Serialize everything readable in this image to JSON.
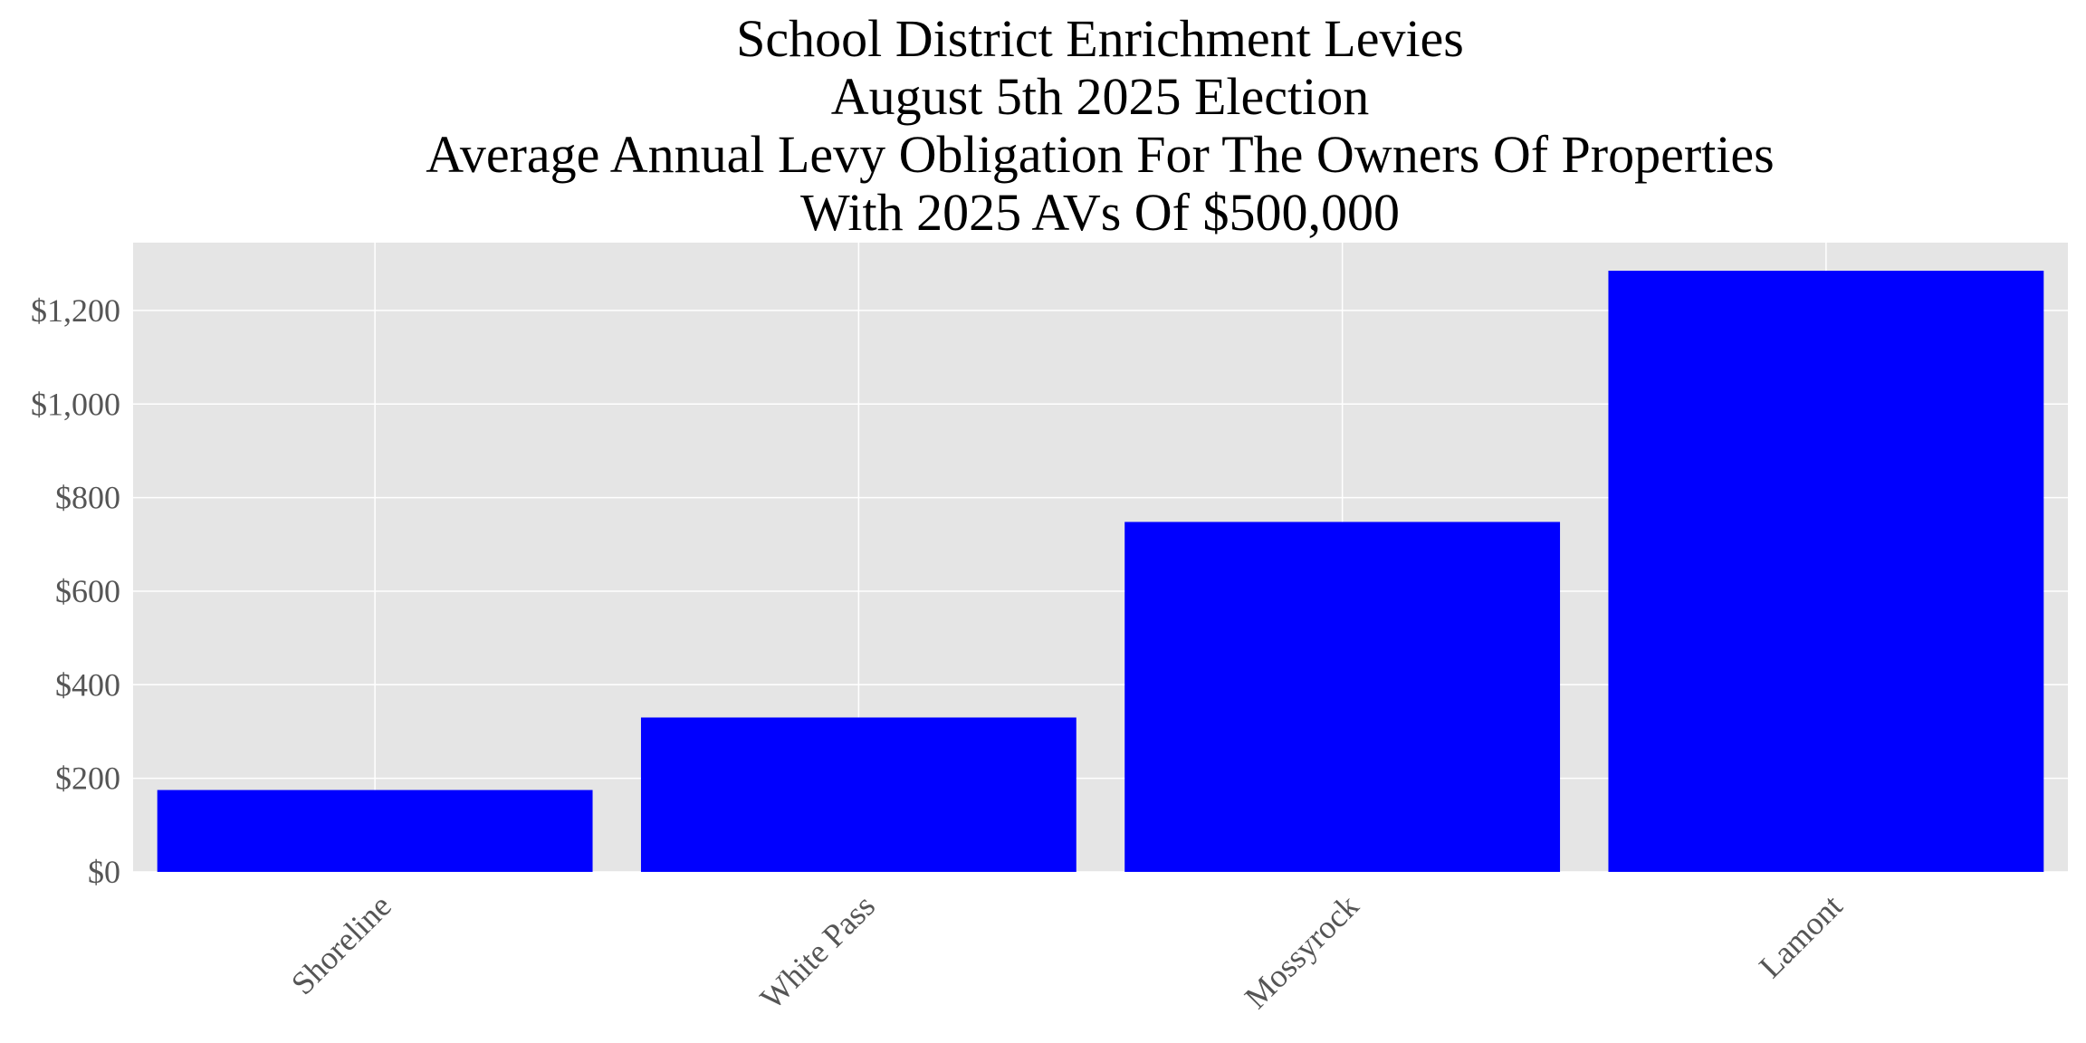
{
  "chart_data": {
    "type": "bar",
    "title_lines": [
      "School District Enrichment Levies",
      "August 5th 2025 Election",
      "Average Annual Levy Obligation For The Owners Of Properties",
      "With 2025 AVs Of $500,000"
    ],
    "xlabel": "",
    "ylabel": "",
    "categories": [
      "Shoreline",
      "White Pass",
      "Mossyrock",
      "Lamont"
    ],
    "values": [
      175,
      330,
      748,
      1285
    ],
    "ylim": [
      0,
      1345
    ],
    "yticks": [
      0,
      200,
      400,
      600,
      800,
      1000,
      1200
    ],
    "ytick_labels": [
      "$0",
      "$200",
      "$400",
      "$600",
      "$800",
      "$1,000",
      "$1,200"
    ],
    "grid": true,
    "legend": "none",
    "colors": {
      "bar": "#0000ff",
      "plot_background": "#e5e5e5",
      "grid": "#ffffff"
    }
  }
}
